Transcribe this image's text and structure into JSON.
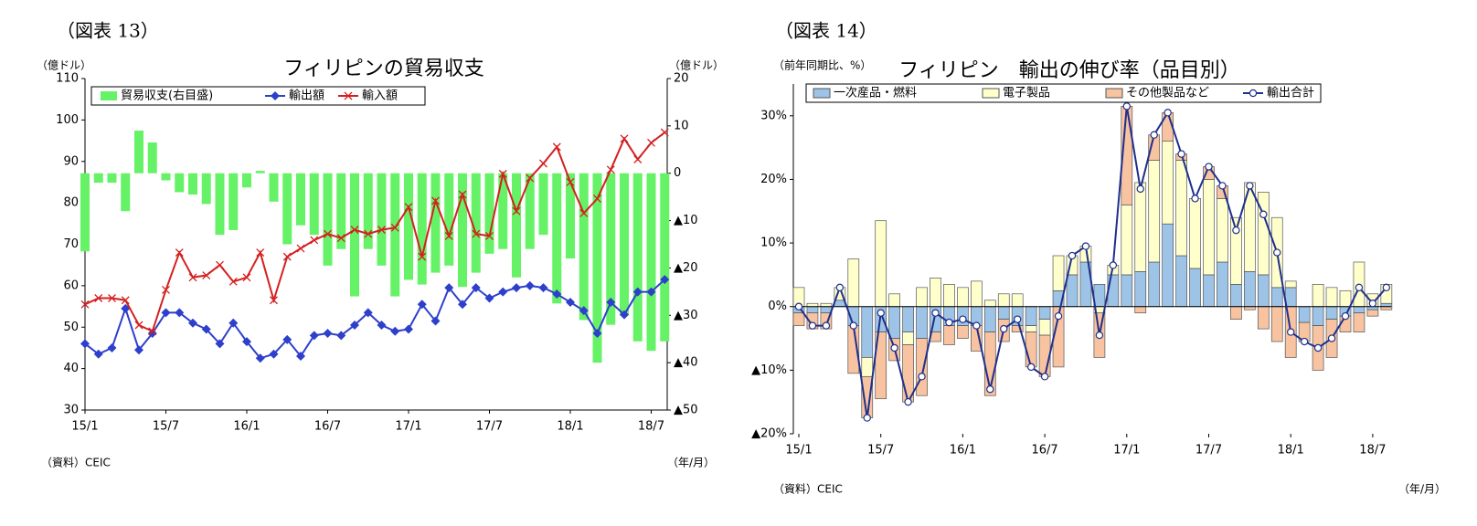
{
  "chart_data": [
    {
      "type": "combo",
      "caption": "（図表 13）",
      "title": "フィリピンの貿易収支",
      "y_label": "（億ドル）",
      "y2_label": "（億ドル）",
      "source": "（資料）CEIC",
      "x_unit": "（年/月）",
      "categories": [
        "15/1",
        null,
        null,
        null,
        null,
        null,
        "15/7",
        null,
        null,
        null,
        null,
        null,
        "16/1",
        null,
        null,
        null,
        null,
        null,
        "16/7",
        null,
        null,
        null,
        null,
        null,
        "17/1",
        null,
        null,
        null,
        null,
        null,
        "17/7",
        null,
        null,
        null,
        null,
        null,
        "18/1",
        null,
        null,
        null,
        null,
        null,
        "18/7",
        null
      ],
      "ylim": [
        30,
        110
      ],
      "yticks": [
        30,
        40,
        50,
        60,
        70,
        80,
        90,
        100,
        110
      ],
      "y2lim": [
        -50,
        20
      ],
      "y2ticks": [
        {
          "value": -50,
          "label": "▲50"
        },
        {
          "value": -40,
          "label": "▲40"
        },
        {
          "value": -30,
          "label": "▲30"
        },
        {
          "value": -20,
          "label": "▲20"
        },
        {
          "value": -10,
          "label": "▲10"
        },
        0,
        10,
        20
      ],
      "series": [
        {
          "name": "貿易収支(右目盛)",
          "type": "bar",
          "axis": "y2",
          "color": "#66f266",
          "values": [
            -16.5,
            -2,
            -2,
            -8,
            9,
            6.5,
            -1.5,
            -4,
            -4.5,
            -6.5,
            -13,
            -12,
            -3,
            0.5,
            -6,
            -15,
            -11,
            -13,
            -19.5,
            -16,
            -26,
            -16,
            -19.5,
            -26,
            -22.5,
            -23.5,
            -21,
            -19.5,
            -24,
            -21,
            -17,
            -16,
            -22,
            -16,
            -13,
            -27.5,
            -18,
            -31,
            -40,
            -32,
            -30,
            -35.5,
            -37.5,
            -35.5
          ]
        },
        {
          "name": "輸出額",
          "type": "line",
          "marker": "diamond",
          "color": "#2e3fcc",
          "values": [
            46,
            43.5,
            45,
            54.5,
            44.5,
            48.5,
            53.5,
            53.5,
            51,
            49.5,
            46,
            51,
            46.5,
            42.5,
            43.5,
            47,
            43,
            48,
            48.5,
            48,
            50.5,
            53.5,
            50.5,
            49,
            49.5,
            55.5,
            51.5,
            59.5,
            55.5,
            59.5,
            57,
            58.5,
            59.5,
            60,
            59.5,
            58,
            56,
            54,
            48.5,
            56,
            53,
            58.5,
            58.5,
            61.5
          ]
        },
        {
          "name": "輸入額",
          "type": "line",
          "marker": "cross",
          "color": "#d42020",
          "values": [
            55.5,
            57,
            57,
            56.5,
            50.5,
            49,
            59,
            68,
            62,
            62.5,
            65,
            61,
            62,
            68,
            56.5,
            67,
            69,
            71,
            72.5,
            71.5,
            73.5,
            72.5,
            73.5,
            74,
            79,
            67,
            80.5,
            72,
            82,
            72.5,
            72,
            87,
            78,
            86,
            89.5,
            93.5,
            85,
            77.5,
            81,
            88,
            95.5,
            90.5,
            94.5,
            97
          ]
        }
      ]
    },
    {
      "type": "combo",
      "stacked": true,
      "caption": "（図表 14）",
      "title": "フィリピン　輸出の伸び率（品目別）",
      "y_label": "（前年同期比、%）",
      "source": "（資料）CEIC",
      "x_unit": "（年/月）",
      "categories": [
        "15/1",
        null,
        null,
        null,
        null,
        null,
        "15/7",
        null,
        null,
        null,
        null,
        null,
        "16/1",
        null,
        null,
        null,
        null,
        null,
        "16/7",
        null,
        null,
        null,
        null,
        null,
        "17/1",
        null,
        null,
        null,
        null,
        null,
        "17/7",
        null,
        null,
        null,
        null,
        null,
        "18/1",
        null,
        null,
        null,
        null,
        null,
        "18/7",
        null
      ],
      "ylim": [
        -20,
        35
      ],
      "yticks": [
        {
          "value": -20,
          "label": "▲20%"
        },
        {
          "value": -10,
          "label": "▲10%"
        },
        {
          "value": 0,
          "label": "0%"
        },
        {
          "value": 10,
          "label": "10%"
        },
        {
          "value": 20,
          "label": "20%"
        },
        {
          "value": 30,
          "label": "30%"
        }
      ],
      "series": [
        {
          "name": "一次産品・燃料",
          "type": "bar",
          "color": "#9dc3e6",
          "values": [
            -1,
            -1,
            -1,
            1,
            -3,
            -8,
            -4,
            -5,
            -4,
            -5,
            -4,
            -3,
            -3,
            -3,
            -4,
            -2,
            -3,
            -3,
            -2,
            2.5,
            5,
            7,
            3.5,
            5,
            5,
            5.5,
            7,
            13,
            8,
            6,
            5,
            7,
            3.5,
            5.5,
            5,
            3,
            3,
            -2.5,
            -3,
            -2,
            -1.5,
            -1,
            -0.5,
            0.5
          ]
        },
        {
          "name": "電子製品",
          "type": "bar",
          "color": "#ffffcc",
          "values": [
            3,
            0.5,
            0.5,
            2,
            7.5,
            -3,
            13.5,
            2,
            -2,
            3,
            4.5,
            3.5,
            3,
            4,
            1,
            2,
            2,
            -1,
            -2.5,
            5.5,
            3,
            2.5,
            -1,
            1.5,
            11,
            14,
            16,
            13,
            15,
            11,
            15,
            10,
            10.5,
            14,
            13,
            11,
            1,
            0,
            3.5,
            3,
            2.5,
            7,
            2,
            3
          ]
        },
        {
          "name": "その他製品など",
          "type": "bar",
          "color": "#f8c3a0",
          "values": [
            -2,
            -2.5,
            -2.5,
            0,
            -7.5,
            -6.5,
            -10.5,
            -3.5,
            -9,
            -9,
            -1.5,
            -3,
            -2,
            -4,
            -10,
            -3.5,
            -1,
            -5.5,
            -6.5,
            -9.5,
            0,
            0,
            -7,
            0,
            15.5,
            -1,
            4,
            4.5,
            1,
            0,
            2,
            2,
            -2,
            -0.5,
            -3.5,
            -5.5,
            -8,
            -3,
            -7,
            -6,
            -2.5,
            -3,
            -1,
            -0.5
          ]
        },
        {
          "name": "輸出合計",
          "type": "line",
          "marker": "circle",
          "color": "#1f2f8c",
          "values": [
            0,
            -3,
            -3,
            3,
            -3,
            -17.5,
            -1,
            -6.5,
            -15,
            -11,
            -1,
            -2.5,
            -2,
            -3,
            -13,
            -3.5,
            -2,
            -9.5,
            -11,
            -1.5,
            8,
            9.5,
            -4.5,
            6.5,
            31.5,
            18.5,
            27,
            30.5,
            24,
            17,
            22,
            19,
            12,
            19,
            14.5,
            8.5,
            -4,
            -5.5,
            -6.5,
            -5,
            -1.5,
            3,
            0.5,
            3
          ]
        }
      ]
    }
  ]
}
